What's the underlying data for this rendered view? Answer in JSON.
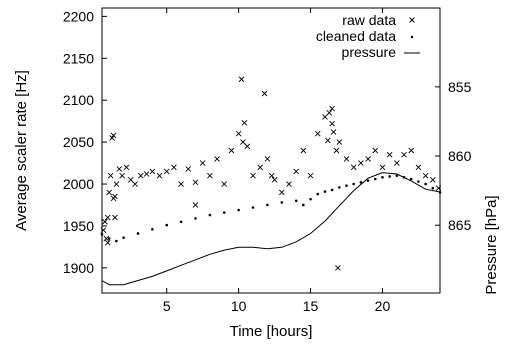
{
  "chart_data": {
    "type": "scatter",
    "xlabel": "Time [hours]",
    "ylabel": "Average scaler rate [Hz]",
    "y2label": "Pressure [hPa]",
    "xlim": [
      0.5,
      24
    ],
    "ylim": [
      1870,
      2210
    ],
    "y2lim": [
      869.9,
      849.3
    ],
    "y2_inverted": true,
    "x_ticks": [
      "5",
      "10",
      "15",
      "20"
    ],
    "y_ticks": [
      "1900",
      "1950",
      "2000",
      "2050",
      "2100",
      "2150",
      "2200"
    ],
    "y2_ticks": [
      "855",
      "860",
      "865"
    ],
    "legend_position": "top-right",
    "grid": false,
    "legend": [
      {
        "label": "raw data",
        "marker": "x"
      },
      {
        "label": "cleaned data",
        "marker": "dot"
      },
      {
        "label": "pressure",
        "marker": "line"
      }
    ],
    "series": [
      {
        "name": "raw data",
        "axis": "left",
        "style": "x-marker",
        "x": [
          0.6,
          0.7,
          0.8,
          0.9,
          1.0,
          1.1,
          1.2,
          1.3,
          1.4,
          1.5,
          1.7,
          1.9,
          2.2,
          2.5,
          2.8,
          3.2,
          3.6,
          4.0,
          4.5,
          5.0,
          5.5,
          6.0,
          6.5,
          7.0,
          7.5,
          8.0,
          8.5,
          9.0,
          9.5,
          10.0,
          10.3,
          10.6,
          11.0,
          11.5,
          12.0,
          12.5,
          13.0,
          13.5,
          14.0,
          14.5,
          15.0,
          15.5,
          16.0,
          16.3,
          16.5,
          16.8,
          17.0,
          17.5,
          18.0,
          18.5,
          19.0,
          19.5,
          20.0,
          20.5,
          21.0,
          21.5,
          22.0,
          22.5,
          23.0,
          23.5,
          23.9,
          10.2,
          11.8,
          10.4,
          16.6,
          16.2,
          16.5,
          1.3,
          1.4,
          0.9,
          16.9,
          7.0,
          12.3
        ],
        "y": [
          1945,
          1955,
          1935,
          1960,
          1990,
          2010,
          2055,
          2058,
          1985,
          2000,
          2018,
          2010,
          2020,
          2005,
          2000,
          2010,
          2012,
          2015,
          2010,
          2015,
          2020,
          2000,
          2018,
          2002,
          2025,
          2010,
          2030,
          2000,
          2040,
          2060,
          2050,
          2045,
          2010,
          2020,
          2030,
          2005,
          1990,
          2000,
          2015,
          2040,
          2010,
          2060,
          2080,
          2085,
          2090,
          2040,
          2050,
          2030,
          2020,
          2025,
          2030,
          2040,
          2020,
          2035,
          2025,
          2035,
          2040,
          2020,
          2010,
          2005,
          1995,
          2125,
          2108,
          2073,
          2062,
          2052,
          2072,
          1983,
          1960,
          1930,
          1900,
          1975,
          2010
        ]
      },
      {
        "name": "cleaned data",
        "axis": "left",
        "style": "dot",
        "x": [
          0.5,
          1.0,
          1.5,
          2.0,
          3.0,
          4.0,
          5.0,
          6.0,
          7.0,
          8.0,
          9.0,
          10.0,
          11.0,
          12.0,
          13.0,
          14.0,
          14.5,
          15.0,
          15.5,
          16.0,
          16.5,
          17.0,
          17.5,
          18.0,
          18.5,
          19.0,
          19.5,
          20.0,
          20.5,
          21.0,
          21.5,
          22.0,
          22.5,
          23.0,
          23.5,
          24.0
        ],
        "y": [
          1940,
          1935,
          1932,
          1936,
          1941,
          1946,
          1951,
          1955,
          1959,
          1963,
          1966,
          1969,
          1972,
          1975,
          1978,
          1980,
          1975,
          1982,
          1988,
          1991,
          1993,
          1996,
          1998,
          2000,
          2002,
          2004,
          2006,
          2008,
          2009,
          2010,
          2008,
          2006,
          2003,
          2000,
          1995,
          1990
        ]
      },
      {
        "name": "pressure",
        "axis": "right",
        "style": "line",
        "x": [
          0.5,
          1.0,
          2.0,
          3.0,
          4.0,
          5.0,
          6.0,
          7.0,
          8.0,
          9.0,
          10.0,
          11.0,
          12.0,
          13.0,
          14.0,
          15.0,
          16.0,
          17.0,
          18.0,
          19.0,
          20.0,
          21.0,
          22.0,
          23.0,
          24.0
        ],
        "y": [
          869.0,
          869.3,
          869.3,
          869.0,
          868.7,
          868.3,
          867.9,
          867.5,
          867.1,
          866.8,
          866.6,
          866.6,
          866.7,
          866.6,
          866.2,
          865.6,
          864.7,
          863.6,
          862.5,
          861.6,
          861.2,
          861.3,
          861.8,
          862.4,
          862.6
        ]
      }
    ]
  }
}
